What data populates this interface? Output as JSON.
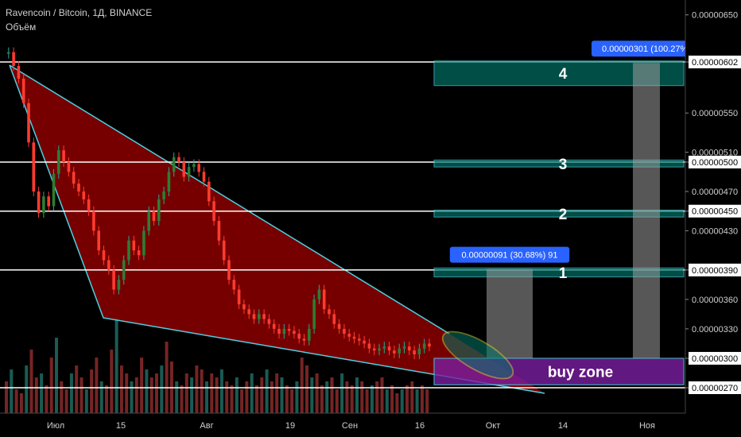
{
  "header": {
    "symbol": "Ravencoin / Bitcoin, 1Д, BINANCE",
    "indicator": "Объём"
  },
  "colors": {
    "background": "#000000",
    "up": "#26a69a",
    "down": "#ef5350",
    "wedge_fill": "#8b0000",
    "wedge_line": "#4dd0e1",
    "target_box": "#00796b",
    "buy_zone": "#7b1fa2",
    "measure": "#9e9e9e",
    "measure_label": "#2962ff",
    "ellipse": "#c0ca33"
  },
  "chart_data": {
    "type": "candlestick",
    "title": "Ravencoin / Bitcoin, 1Д, BINANCE",
    "y_ticks": [
      "0.00000650",
      "0.00000602",
      "0.00000550",
      "0.00000510",
      "0.00000500",
      "0.00000470",
      "0.00000450",
      "0.00000430",
      "0.00000390",
      "0.00000360",
      "0.00000330",
      "0.00000300",
      "0.00000270"
    ],
    "highlighted_y_ticks": [
      "0.00000602",
      "0.00000500",
      "0.00000450",
      "0.00000390",
      "0.00000300",
      "0.00000270"
    ],
    "x_ticks": [
      "Июл",
      "15",
      "Авг",
      "19",
      "Сен",
      "16",
      "Окт",
      "14",
      "Ноя"
    ],
    "horizontal_levels": [
      6.02e-06,
      5e-06,
      4.5e-06,
      3.9e-06,
      2.7e-06
    ],
    "targets": [
      {
        "label": "1",
        "low": 3.83e-06,
        "high": 3.92e-06
      },
      {
        "label": "2",
        "low": 4.44e-06,
        "high": 4.51e-06
      },
      {
        "label": "3",
        "low": 4.95e-06,
        "high": 5.02e-06
      },
      {
        "label": "4",
        "low": 5.78e-06,
        "high": 6.03e-06
      }
    ],
    "buy_zone": {
      "label": "buy zone",
      "low": 2.73e-06,
      "high": 3e-06
    },
    "measurements": [
      {
        "text": "0.00000091 (30.68%) 91",
        "from": 3e-06,
        "to": 3.91e-06
      },
      {
        "text": "0.00000301 (100.27%)",
        "from": 3e-06,
        "to": 6.01e-06
      }
    ],
    "closes": [
      6.12e-06,
      5.98e-06,
      5.85e-06,
      5.6e-06,
      5.2e-06,
      4.7e-06,
      4.48e-06,
      4.65e-06,
      4.55e-06,
      4.88e-06,
      5.12e-06,
      5e-06,
      4.9e-06,
      4.78e-06,
      4.7e-06,
      4.62e-06,
      4.5e-06,
      4.3e-06,
      4.1e-06,
      4e-06,
      3.9e-06,
      3.7e-06,
      3.8e-06,
      4e-06,
      4.2e-06,
      4.1e-06,
      4.05e-06,
      4.3e-06,
      4.5e-06,
      4.4e-06,
      4.62e-06,
      4.7e-06,
      4.9e-06,
      5.05e-06,
      5e-06,
      4.85e-06,
      4.95e-06,
      4.98e-06,
      4.9e-06,
      4.8e-06,
      4.6e-06,
      4.4e-06,
      4.2e-06,
      4e-06,
      3.8e-06,
      3.7e-06,
      3.55e-06,
      3.5e-06,
      3.45e-06,
      3.4e-06,
      3.45e-06,
      3.4e-06,
      3.35e-06,
      3.3e-06,
      3.25e-06,
      3.3e-06,
      3.28e-06,
      3.25e-06,
      3.2e-06,
      3.18e-06,
      3.3e-06,
      3.6e-06,
      3.7e-06,
      3.5e-06,
      3.45e-06,
      3.35e-06,
      3.3e-06,
      3.25e-06,
      3.22e-06,
      3.2e-06,
      3.18e-06,
      3.15e-06,
      3.1e-06,
      3.08e-06,
      3.1e-06,
      3.12e-06,
      3.08e-06,
      3.05e-06,
      3.1e-06,
      3.12e-06,
      3.08e-06,
      3.04e-06,
      3.1e-06,
      3.15e-06,
      3.12e-06
    ]
  }
}
